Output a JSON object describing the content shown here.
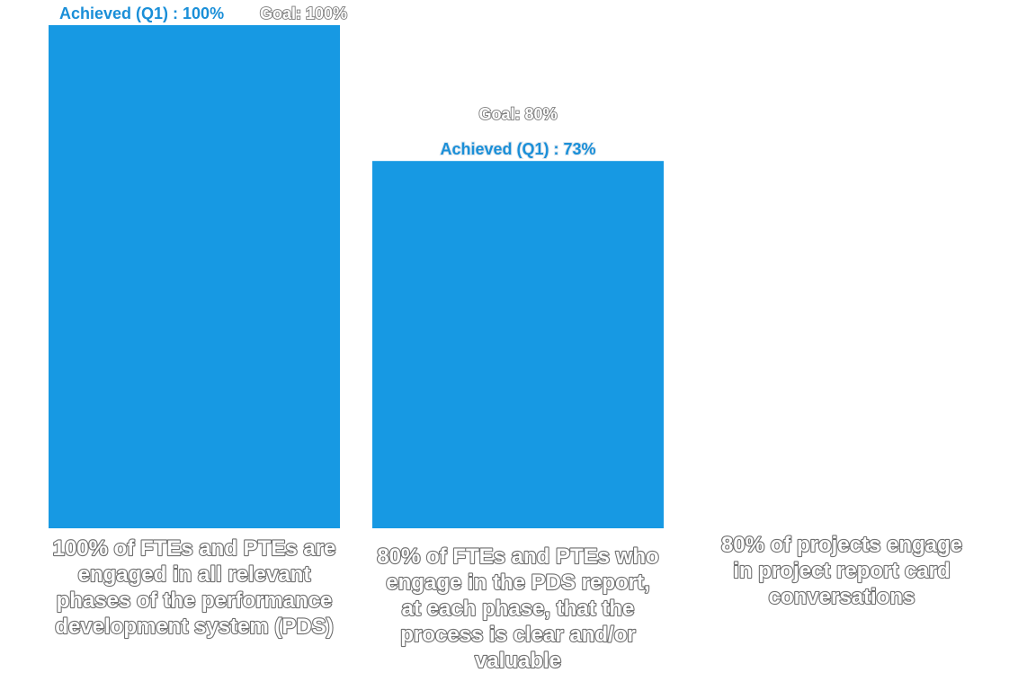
{
  "chart_data": {
    "type": "bar",
    "categories": [
      [
        "100% of FTEs and PTEs are",
        "engaged in all relevant",
        "phases of the performance",
        "development system (PDS)"
      ],
      [
        "80% of FTEs and PTEs who",
        "engage in the PDS report,",
        "at each phase, that the",
        "process is clear and/or",
        "valuable"
      ],
      [
        "80% of projects engage",
        "in project report card",
        "conversations"
      ]
    ],
    "series": [
      {
        "values": [
          100,
          73,
          null
        ],
        "color": "#1799e3"
      }
    ],
    "goal_labels": [
      "Goal: 100%",
      "Goal: 80%",
      ""
    ],
    "achieved_labels": [
      "Achieved (Q1) : 100%",
      "Achieved (Q1) : 73%",
      ""
    ],
    "ylim": [
      0,
      100
    ],
    "grid": false,
    "title": "",
    "xlabel": "",
    "ylabel": ""
  }
}
